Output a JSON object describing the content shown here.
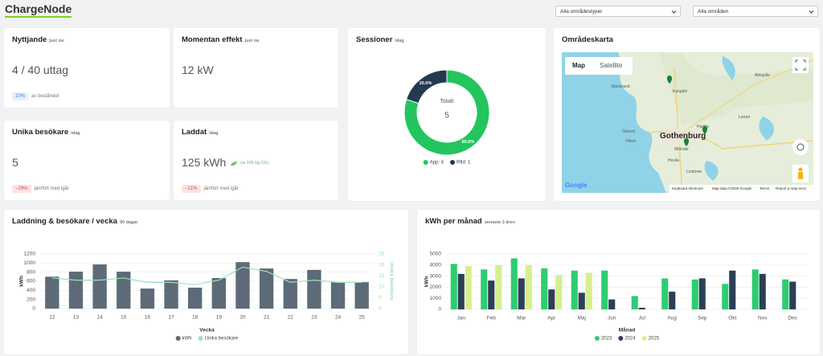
{
  "header": {
    "logo": "ChargeNode",
    "filters": [
      "Alla områdestyper",
      "Alla områden"
    ]
  },
  "kpi_cards": [
    {
      "title": "Nyttjande",
      "badge": "just nu",
      "value": "4 / 40 uttag",
      "change": "10%",
      "note": "av beståndet"
    },
    {
      "title": "Momentan effekt",
      "badge": "just nu",
      "value": "12 kW"
    },
    {
      "title": "Unika besökare",
      "badge": "idag",
      "value": "5",
      "change": "−29%",
      "note": "jämfört med igår"
    },
    {
      "title": "Laddat",
      "badge": "idag",
      "value": "125 kWh",
      "extra": "ca 105 kg CO₂",
      "change": "−21%",
      "note": "jämfört med igår"
    }
  ],
  "map": {
    "title": "Områdeskarta",
    "map_button": "Map",
    "satellite_button": "Satellite",
    "places": [
      "Marstrand",
      "Kungälv",
      "Öckerö",
      "Hönö",
      "Gothenburg",
      "Partille",
      "Mölndal",
      "Hovås",
      "Lindome",
      "Lerum",
      "Alingsås"
    ],
    "attribution": [
      "Keyboard shortcuts",
      "Map data ©2025 Google",
      "Terms",
      "Report a map error"
    ],
    "logo": "Google"
  },
  "chart_data": [
    {
      "type": "pie",
      "title": "Sessioner",
      "badge": "idag",
      "center_label": "Totalt",
      "center_value": 5,
      "categories": [
        "App: 4",
        "Rfid: 1"
      ],
      "values": [
        80,
        20
      ],
      "value_labels": [
        "80.0%",
        "20.0%"
      ],
      "colors": [
        "#22c55e",
        "#233a50"
      ]
    },
    {
      "type": "bar",
      "title": "Laddning & besökare / vecka",
      "badge": "90 dagar",
      "xlabel": "Vecka",
      "ylabel": "kWh",
      "y2label": "Unika besökare",
      "categories": [
        "12",
        "13",
        "14",
        "15",
        "16",
        "17",
        "18",
        "19",
        "20",
        "21",
        "22",
        "23",
        "24",
        "25"
      ],
      "series": [
        {
          "name": "kWh",
          "type": "bar",
          "color": "#5c6b77",
          "values": [
            700,
            810,
            970,
            810,
            440,
            620,
            460,
            670,
            1020,
            880,
            650,
            850,
            580,
            580
          ]
        },
        {
          "name": "Unika besökare",
          "type": "line",
          "axis": "y2",
          "color": "#9fe0bc",
          "values": [
            14,
            13,
            13,
            14,
            12,
            12,
            11,
            13,
            19,
            17,
            12,
            13,
            12,
            12
          ]
        }
      ],
      "ylim": [
        0,
        1200
      ],
      "yticks": [
        0,
        200,
        400,
        600,
        800,
        1000,
        1200
      ],
      "y2lim": [
        0,
        25
      ],
      "y2ticks": [
        0,
        5,
        10,
        15,
        20,
        25
      ],
      "grid": true
    },
    {
      "type": "bar",
      "title": "kWh per månad",
      "badge": "senaste 3 åren",
      "xlabel": "Månad",
      "ylabel": "kWh",
      "categories": [
        "Jan",
        "Feb",
        "Mar",
        "Apr",
        "Maj",
        "Jun",
        "Jul",
        "Aug",
        "Sep",
        "Okt",
        "Nov",
        "Dec"
      ],
      "series": [
        {
          "name": "2023",
          "type": "bar",
          "color": "#2ecc71",
          "values": [
            4100,
            3600,
            4600,
            3700,
            3500,
            3500,
            1200,
            2800,
            2700,
            2300,
            3600,
            2700
          ]
        },
        {
          "name": "2024",
          "type": "bar",
          "color": "#2b4055",
          "values": [
            3200,
            2600,
            2800,
            1800,
            1500,
            900,
            150,
            1600,
            2800,
            3500,
            3200,
            2500
          ]
        },
        {
          "name": "2025",
          "type": "bar",
          "color": "#d6ef8d",
          "values": [
            3900,
            4000,
            4000,
            3100,
            3300,
            null,
            null,
            null,
            null,
            null,
            null,
            null
          ]
        }
      ],
      "ylim": [
        0,
        5000
      ],
      "yticks": [
        0,
        1000,
        2000,
        3000,
        4000,
        5000
      ],
      "grid": true
    }
  ]
}
